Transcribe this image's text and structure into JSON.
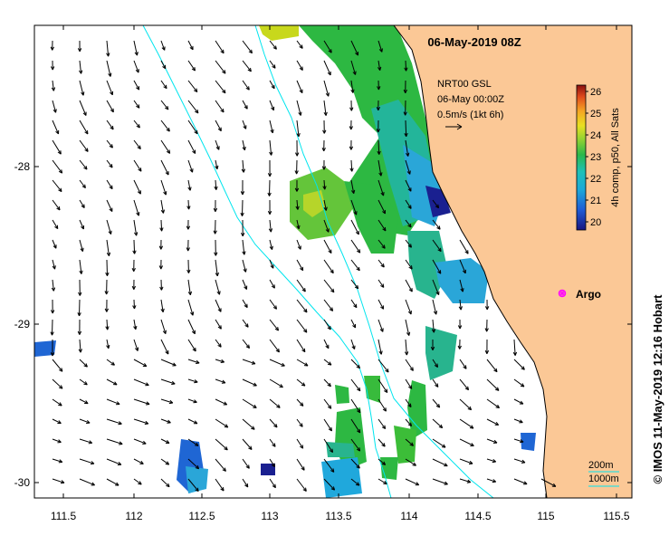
{
  "map": {
    "title": "06-May-2019 08Z",
    "x_ticks": [
      "111.5",
      "112",
      "112.5",
      "113",
      "113.5",
      "114",
      "114.5",
      "115",
      "115.5"
    ],
    "y_ticks": [
      "-28",
      "-29",
      "-30"
    ],
    "credit": "© IMOS 11-May-2019 12:16 Hobart"
  },
  "current_legend": {
    "line1": "NRT00 GSL",
    "line2": "06-May 00:00Z",
    "line3": "0.5m/s (1kt 6h)"
  },
  "colorbar": {
    "label": "4h comp, p50, All Sats",
    "ticks": [
      "26",
      "25",
      "24",
      "23",
      "22",
      "21",
      "20"
    ]
  },
  "argo": {
    "label": "Argo",
    "color": "#ff00ff"
  },
  "bathymetry": {
    "label_200": "200m",
    "label_1000": "1000m",
    "color": "#00e5ee"
  },
  "colors": {
    "land": "#fbc896",
    "frame": "#000000"
  }
}
